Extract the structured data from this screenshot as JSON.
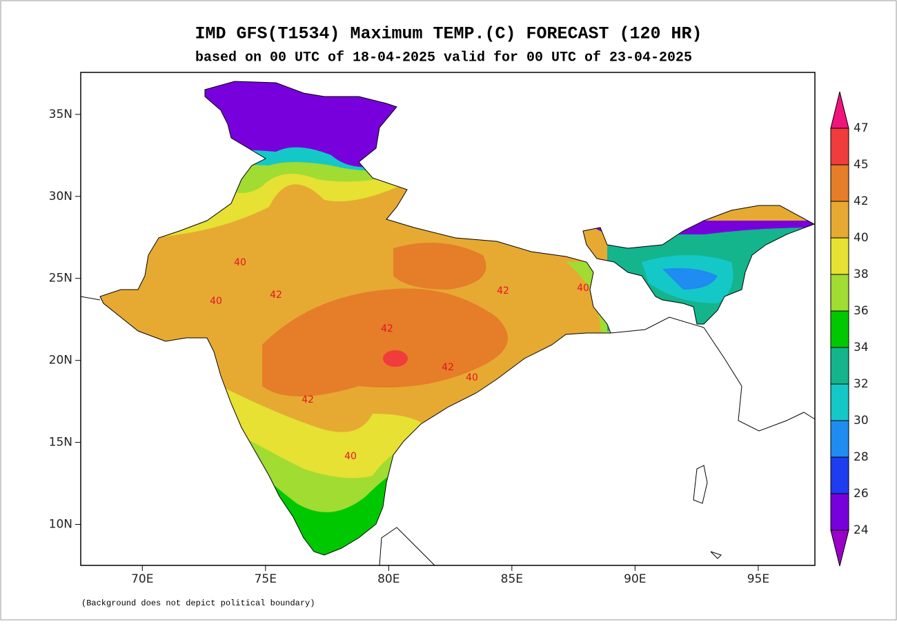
{
  "chart_data": {
    "type": "map",
    "title": "IMD GFS(T1534) Maximum TEMP.(C) FORECAST (120 HR)",
    "subtitle": "based on 00 UTC of 18-04-2025 valid for 00 UTC of 23-04-2025",
    "xlim": [
      67.5,
      97.3
    ],
    "ylim": [
      7.5,
      37.56
    ],
    "xticks": [
      {
        "value": 70,
        "label": "70E"
      },
      {
        "value": 75,
        "label": "75E"
      },
      {
        "value": 80,
        "label": "80E"
      },
      {
        "value": 85,
        "label": "85E"
      },
      {
        "value": 90,
        "label": "90E"
      },
      {
        "value": 95,
        "label": "95E"
      }
    ],
    "yticks": [
      {
        "value": 10,
        "label": "10N"
      },
      {
        "value": 15,
        "label": "15N"
      },
      {
        "value": 20,
        "label": "20N"
      },
      {
        "value": 25,
        "label": "25N"
      },
      {
        "value": 30,
        "label": "30N"
      },
      {
        "value": 35,
        "label": "35N"
      }
    ],
    "colorbar": {
      "levels": [
        24,
        26,
        28,
        30,
        32,
        34,
        36,
        38,
        40,
        42,
        45,
        47
      ],
      "colors": [
        "#9a00c8",
        "#7800dc",
        "#1e3cf0",
        "#1e8cf0",
        "#14c8c8",
        "#14b48c",
        "#00c800",
        "#a0dc32",
        "#e6e132",
        "#e6aa32",
        "#e67d28",
        "#f03c3c",
        "#f0147d"
      ]
    },
    "contour_labels": [
      40,
      40,
      40,
      40,
      40,
      42,
      42,
      42,
      42,
      42
    ],
    "footnote": "(Background does not depict political boundary)"
  }
}
